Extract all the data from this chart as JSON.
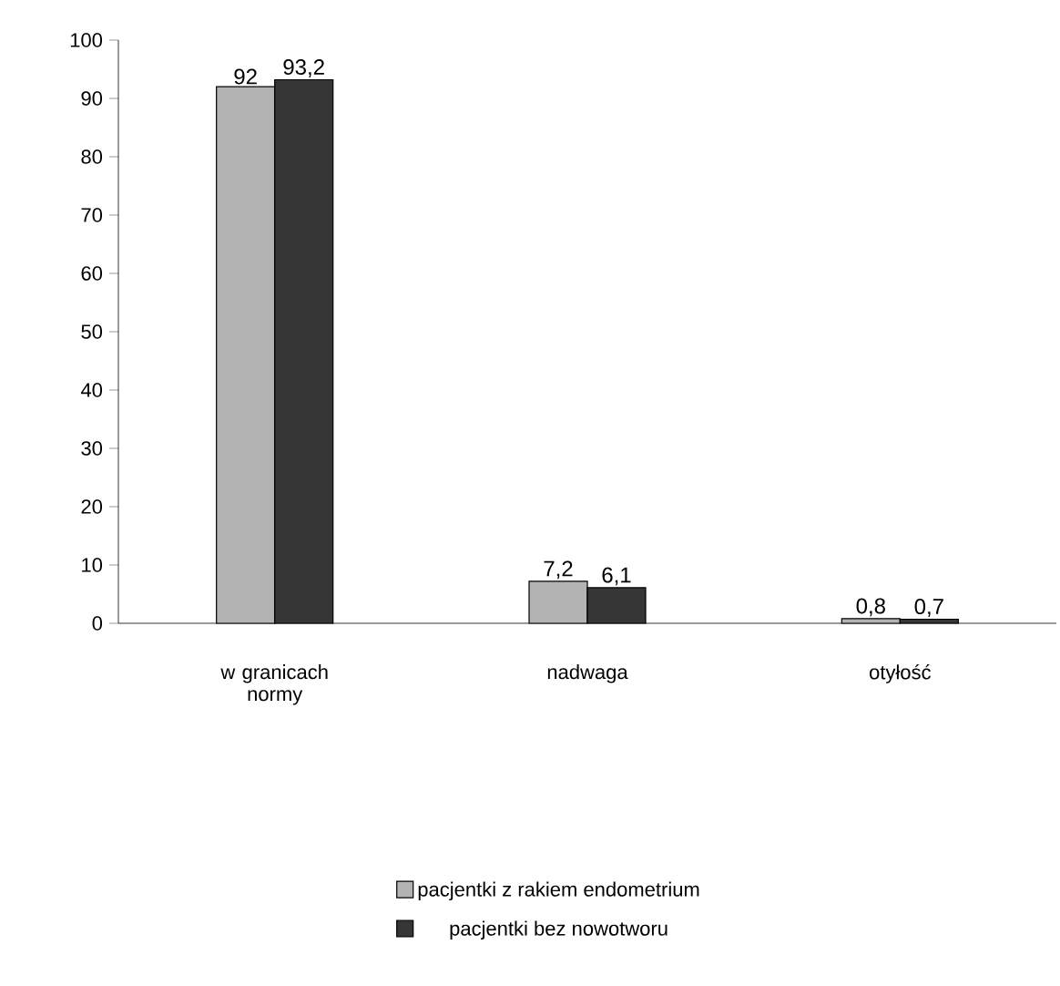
{
  "chart_data": {
    "type": "bar",
    "categories": [
      "w granicach normy",
      "nadwaga",
      "otyłość"
    ],
    "series": [
      {
        "name": "pacjentki z rakiem endometrium",
        "color": "#b3b3b3",
        "values": [
          92,
          7.2,
          0.8
        ],
        "value_labels": [
          "92",
          "7,2",
          "0,8"
        ]
      },
      {
        "name": "pacjentki bez nowotworu",
        "color": "#363636",
        "values": [
          93.2,
          6.1,
          0.7
        ],
        "value_labels": [
          "93,2",
          "6,1",
          "0,7"
        ]
      }
    ],
    "ylim": [
      0,
      100
    ],
    "yticks": [
      0,
      10,
      20,
      30,
      40,
      50,
      60,
      70,
      80,
      90,
      100
    ],
    "grid": false,
    "legend": "bottom"
  }
}
